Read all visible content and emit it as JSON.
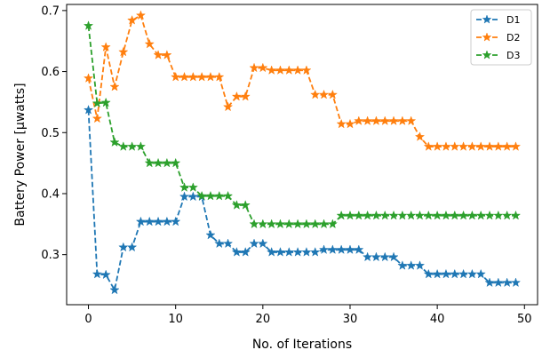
{
  "chart_data": {
    "type": "line",
    "title": "",
    "xlabel": "No. of Iterations",
    "ylabel": "Battery Power [μwatts]",
    "xlim": [
      -2.5,
      51.5
    ],
    "ylim": [
      0.218,
      0.71
    ],
    "xticks": [
      0,
      10,
      20,
      30,
      40,
      50
    ],
    "yticks": [
      0.3,
      0.4,
      0.5,
      0.6,
      0.7
    ],
    "ytick_labels": [
      "0.3",
      "0.4",
      "0.5",
      "0.6",
      "0.7"
    ],
    "grid": false,
    "legend_position": "top-right",
    "line_style": "dashed",
    "marker": "star",
    "x": [
      0,
      1,
      2,
      3,
      4,
      5,
      6,
      7,
      8,
      9,
      10,
      11,
      12,
      13,
      14,
      15,
      16,
      17,
      18,
      19,
      20,
      21,
      22,
      23,
      24,
      25,
      26,
      27,
      28,
      29,
      30,
      31,
      32,
      33,
      34,
      35,
      36,
      37,
      38,
      39,
      40,
      41,
      42,
      43,
      44,
      45,
      46,
      47,
      48,
      49
    ],
    "series": [
      {
        "name": "D1",
        "color": "#1f77b4",
        "values": [
          0.537,
          0.268,
          0.267,
          0.242,
          0.312,
          0.312,
          0.354,
          0.354,
          0.354,
          0.354,
          0.354,
          0.395,
          0.395,
          0.395,
          0.332,
          0.318,
          0.318,
          0.304,
          0.304,
          0.318,
          0.318,
          0.304,
          0.304,
          0.304,
          0.304,
          0.304,
          0.304,
          0.308,
          0.308,
          0.308,
          0.308,
          0.308,
          0.296,
          0.296,
          0.296,
          0.296,
          0.282,
          0.282,
          0.282,
          0.268,
          0.268,
          0.268,
          0.268,
          0.268,
          0.268,
          0.268,
          0.254,
          0.254,
          0.254,
          0.254
        ]
      },
      {
        "name": "D2",
        "color": "#ff7f0e",
        "values": [
          0.589,
          0.523,
          0.64,
          0.575,
          0.632,
          0.684,
          0.692,
          0.645,
          0.627,
          0.627,
          0.591,
          0.591,
          0.591,
          0.591,
          0.591,
          0.591,
          0.542,
          0.559,
          0.559,
          0.606,
          0.606,
          0.602,
          0.602,
          0.602,
          0.602,
          0.602,
          0.562,
          0.562,
          0.562,
          0.514,
          0.514,
          0.519,
          0.519,
          0.519,
          0.519,
          0.519,
          0.519,
          0.519,
          0.493,
          0.477,
          0.477,
          0.477,
          0.477,
          0.477,
          0.477,
          0.477,
          0.477,
          0.477,
          0.477,
          0.477
        ]
      },
      {
        "name": "D3",
        "color": "#2ca02c",
        "values": [
          0.675,
          0.548,
          0.549,
          0.484,
          0.477,
          0.477,
          0.477,
          0.45,
          0.45,
          0.45,
          0.45,
          0.41,
          0.41,
          0.396,
          0.396,
          0.396,
          0.396,
          0.381,
          0.381,
          0.35,
          0.35,
          0.35,
          0.35,
          0.35,
          0.35,
          0.35,
          0.35,
          0.35,
          0.35,
          0.364,
          0.364,
          0.364,
          0.364,
          0.364,
          0.364,
          0.364,
          0.364,
          0.364,
          0.364,
          0.364,
          0.364,
          0.364,
          0.364,
          0.364,
          0.364,
          0.364,
          0.364,
          0.364,
          0.364,
          0.364
        ]
      }
    ]
  }
}
